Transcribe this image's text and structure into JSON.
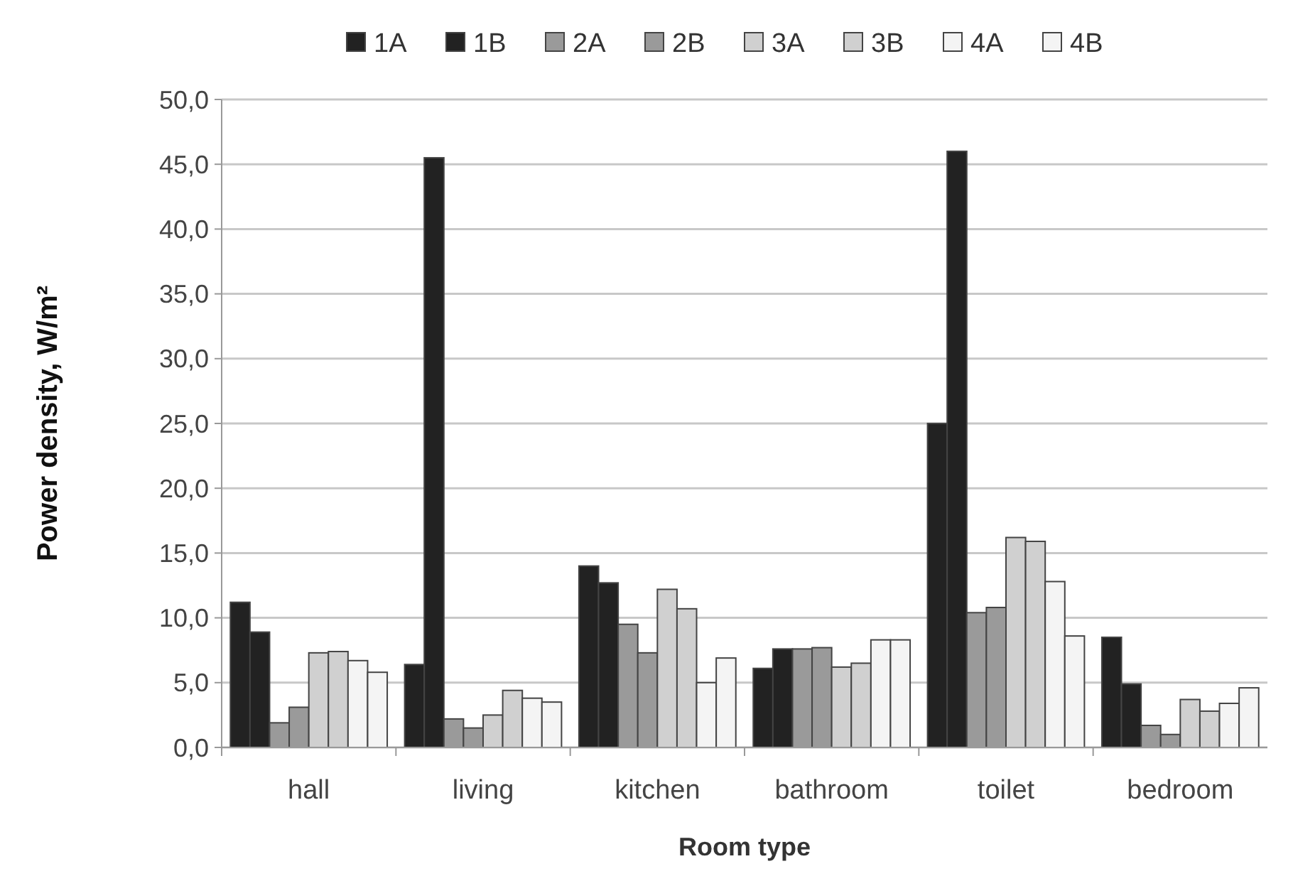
{
  "chart_data": {
    "type": "bar",
    "xlabel": "Room type",
    "ylabel": "Power density, W/m²",
    "categories": [
      "hall",
      "living",
      "kitchen",
      "bathroom",
      "toilet",
      "bedroom"
    ],
    "series": [
      {
        "name": "1A",
        "color": "#222222",
        "values": [
          11.2,
          6.4,
          14.0,
          6.1,
          25.0,
          8.5
        ]
      },
      {
        "name": "1B",
        "color": "#222222",
        "values": [
          8.9,
          45.5,
          12.7,
          7.6,
          46.0,
          4.9
        ]
      },
      {
        "name": "2A",
        "color": "#9a9a9a",
        "values": [
          1.9,
          2.2,
          9.5,
          7.6,
          10.4,
          1.7
        ]
      },
      {
        "name": "2B",
        "color": "#9a9a9a",
        "values": [
          3.1,
          1.5,
          7.3,
          7.7,
          10.8,
          1.0
        ]
      },
      {
        "name": "3A",
        "color": "#d0d0d0",
        "values": [
          7.3,
          2.5,
          12.2,
          6.2,
          16.2,
          3.7
        ]
      },
      {
        "name": "3B",
        "color": "#d0d0d0",
        "values": [
          7.4,
          4.4,
          10.7,
          6.5,
          15.9,
          2.8
        ]
      },
      {
        "name": "4A",
        "color": "#f4f4f4",
        "values": [
          6.7,
          3.8,
          5.0,
          8.3,
          12.8,
          3.4
        ]
      },
      {
        "name": "4B",
        "color": "#f4f4f4",
        "values": [
          5.8,
          3.5,
          6.9,
          8.3,
          8.6,
          4.6
        ]
      }
    ],
    "ylim": [
      0,
      50
    ],
    "yticks": [
      {
        "value": 0,
        "label": "0,0"
      },
      {
        "value": 5,
        "label": "5,0"
      },
      {
        "value": 10,
        "label": "10,0"
      },
      {
        "value": 15,
        "label": "15,0"
      },
      {
        "value": 20,
        "label": "20,0"
      },
      {
        "value": 25,
        "label": "25,0"
      },
      {
        "value": 30,
        "label": "30,0"
      },
      {
        "value": 35,
        "label": "35,0"
      },
      {
        "value": 40,
        "label": "40,0"
      },
      {
        "value": 45,
        "label": "45,0"
      },
      {
        "value": 50,
        "label": "50,0"
      }
    ],
    "grid": "y",
    "legend": "top"
  }
}
